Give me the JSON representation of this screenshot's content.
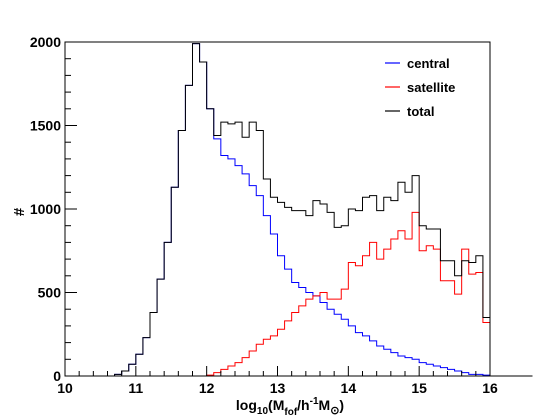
{
  "chart_data": {
    "type": "line",
    "title": "",
    "xlabel_parts": {
      "pre": "log",
      "sub1": "10",
      "mid1": "(M",
      "sub2": "fof",
      "mid2": "/h",
      "sup": "-1",
      "mid3": "M",
      "sub3": "⊙",
      "post": ")"
    },
    "ylabel": "#",
    "xlim": [
      10,
      16
    ],
    "ylim": [
      0,
      2000
    ],
    "xticks": [
      10,
      11,
      12,
      13,
      14,
      15,
      16
    ],
    "yticks": [
      0,
      500,
      1000,
      1500,
      2000
    ],
    "grid": false,
    "legend_position": "top-right",
    "bin_width": 0.1,
    "bin_start": 10.0,
    "series": [
      {
        "name": "central",
        "color": "#0000ff",
        "values": [
          0,
          0,
          0,
          0,
          0,
          0,
          0,
          10,
          30,
          70,
          130,
          230,
          380,
          580,
          800,
          1130,
          1470,
          1740,
          1990,
          1880,
          1600,
          1420,
          1320,
          1300,
          1260,
          1210,
          1140,
          1080,
          960,
          850,
          720,
          640,
          560,
          530,
          500,
          480,
          440,
          400,
          370,
          340,
          300,
          260,
          240,
          210,
          180,
          160,
          140,
          120,
          110,
          100,
          80,
          70,
          60,
          50,
          40,
          30,
          20,
          10,
          10,
          5
        ]
      },
      {
        "name": "satellite",
        "color": "#ff0000",
        "values": [
          0,
          0,
          0,
          0,
          0,
          0,
          0,
          0,
          0,
          0,
          0,
          0,
          0,
          0,
          0,
          0,
          0,
          0,
          0,
          0,
          5,
          20,
          40,
          60,
          80,
          110,
          150,
          190,
          220,
          240,
          280,
          330,
          380,
          420,
          460,
          480,
          500,
          460,
          460,
          520,
          680,
          660,
          720,
          800,
          700,
          760,
          820,
          870,
          820,
          980,
          750,
          780,
          760,
          570,
          570,
          490,
          760,
          610,
          620,
          320,
          0,
          0,
          0,
          0,
          0,
          0
        ]
      },
      {
        "name": "total",
        "color": "#000000",
        "values": [
          0,
          0,
          0,
          0,
          0,
          0,
          0,
          10,
          30,
          70,
          130,
          230,
          380,
          580,
          800,
          1130,
          1470,
          1740,
          1990,
          1880,
          1600,
          1440,
          1520,
          1510,
          1520,
          1430,
          1520,
          1470,
          1180,
          1070,
          1040,
          1010,
          990,
          990,
          960,
          1050,
          1030,
          980,
          890,
          900,
          1000,
          990,
          1070,
          1080,
          990,
          1070,
          1050,
          1160,
          1100,
          1200,
          900,
          880,
          880,
          690,
          690,
          600,
          690,
          680,
          720,
          350,
          0,
          0,
          0,
          0,
          0,
          0
        ]
      }
    ]
  },
  "colors": {
    "axis": "#000000",
    "background": "#ffffff"
  }
}
